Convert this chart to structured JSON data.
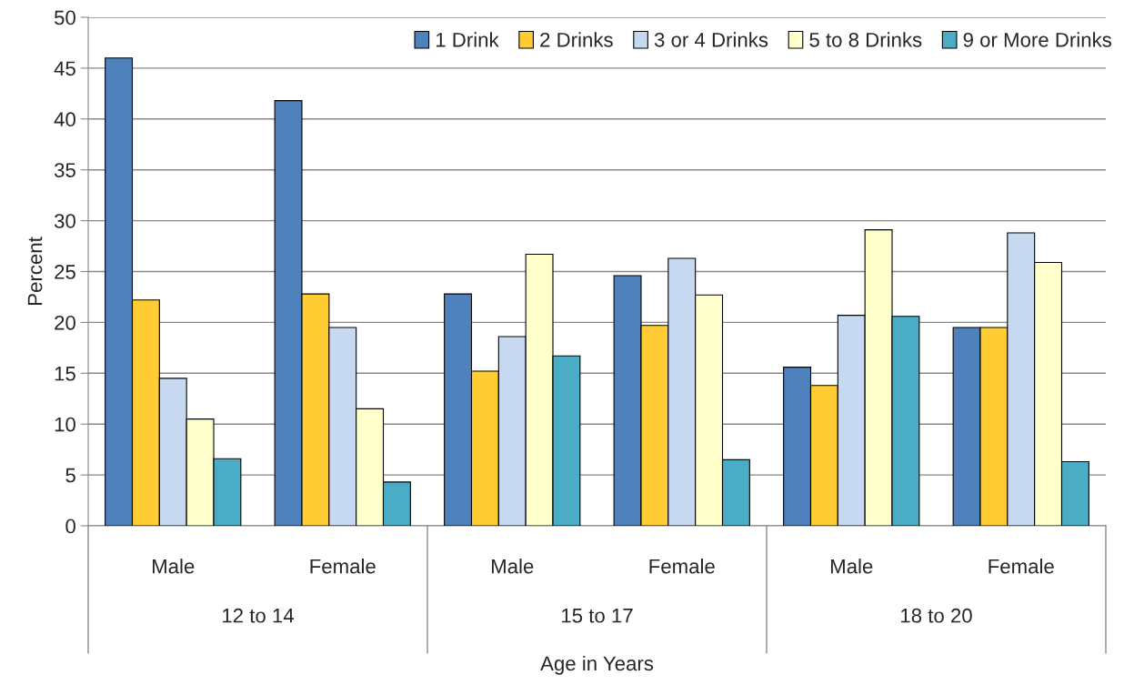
{
  "chart_data": {
    "type": "bar",
    "ylabel": "Percent",
    "xlabel": "Age in Years",
    "categories": [
      "Male",
      "Female",
      "Male",
      "Female",
      "Male",
      "Female"
    ],
    "annotations": [
      "12 to 14",
      "15 to 17",
      "18 to 20"
    ],
    "series": [
      {
        "name": "1 Drink",
        "color": "#4f81bd",
        "values": [
          46.0,
          41.8,
          22.8,
          24.6,
          15.6,
          19.5
        ]
      },
      {
        "name": "2 Drinks",
        "color": "#ffcc33",
        "values": [
          22.2,
          22.8,
          15.2,
          19.7,
          13.8,
          19.5
        ]
      },
      {
        "name": "3 or 4 Drinks",
        "color": "#c6d9f0",
        "values": [
          14.5,
          19.5,
          18.6,
          26.3,
          20.7,
          28.8
        ]
      },
      {
        "name": "5 to 8 Drinks",
        "color": "#ffffcc",
        "values": [
          10.5,
          11.5,
          26.7,
          22.7,
          29.1,
          25.9
        ]
      },
      {
        "name": "9 or More Drinks",
        "color": "#4bacc6",
        "values": [
          6.6,
          4.3,
          16.7,
          6.5,
          20.6,
          6.3
        ]
      }
    ],
    "ylim": [
      0,
      50
    ],
    "yticks": [
      0,
      5,
      10,
      15,
      20,
      25,
      30,
      35,
      40,
      45,
      50
    ],
    "grid": "y",
    "legend": "top right"
  }
}
